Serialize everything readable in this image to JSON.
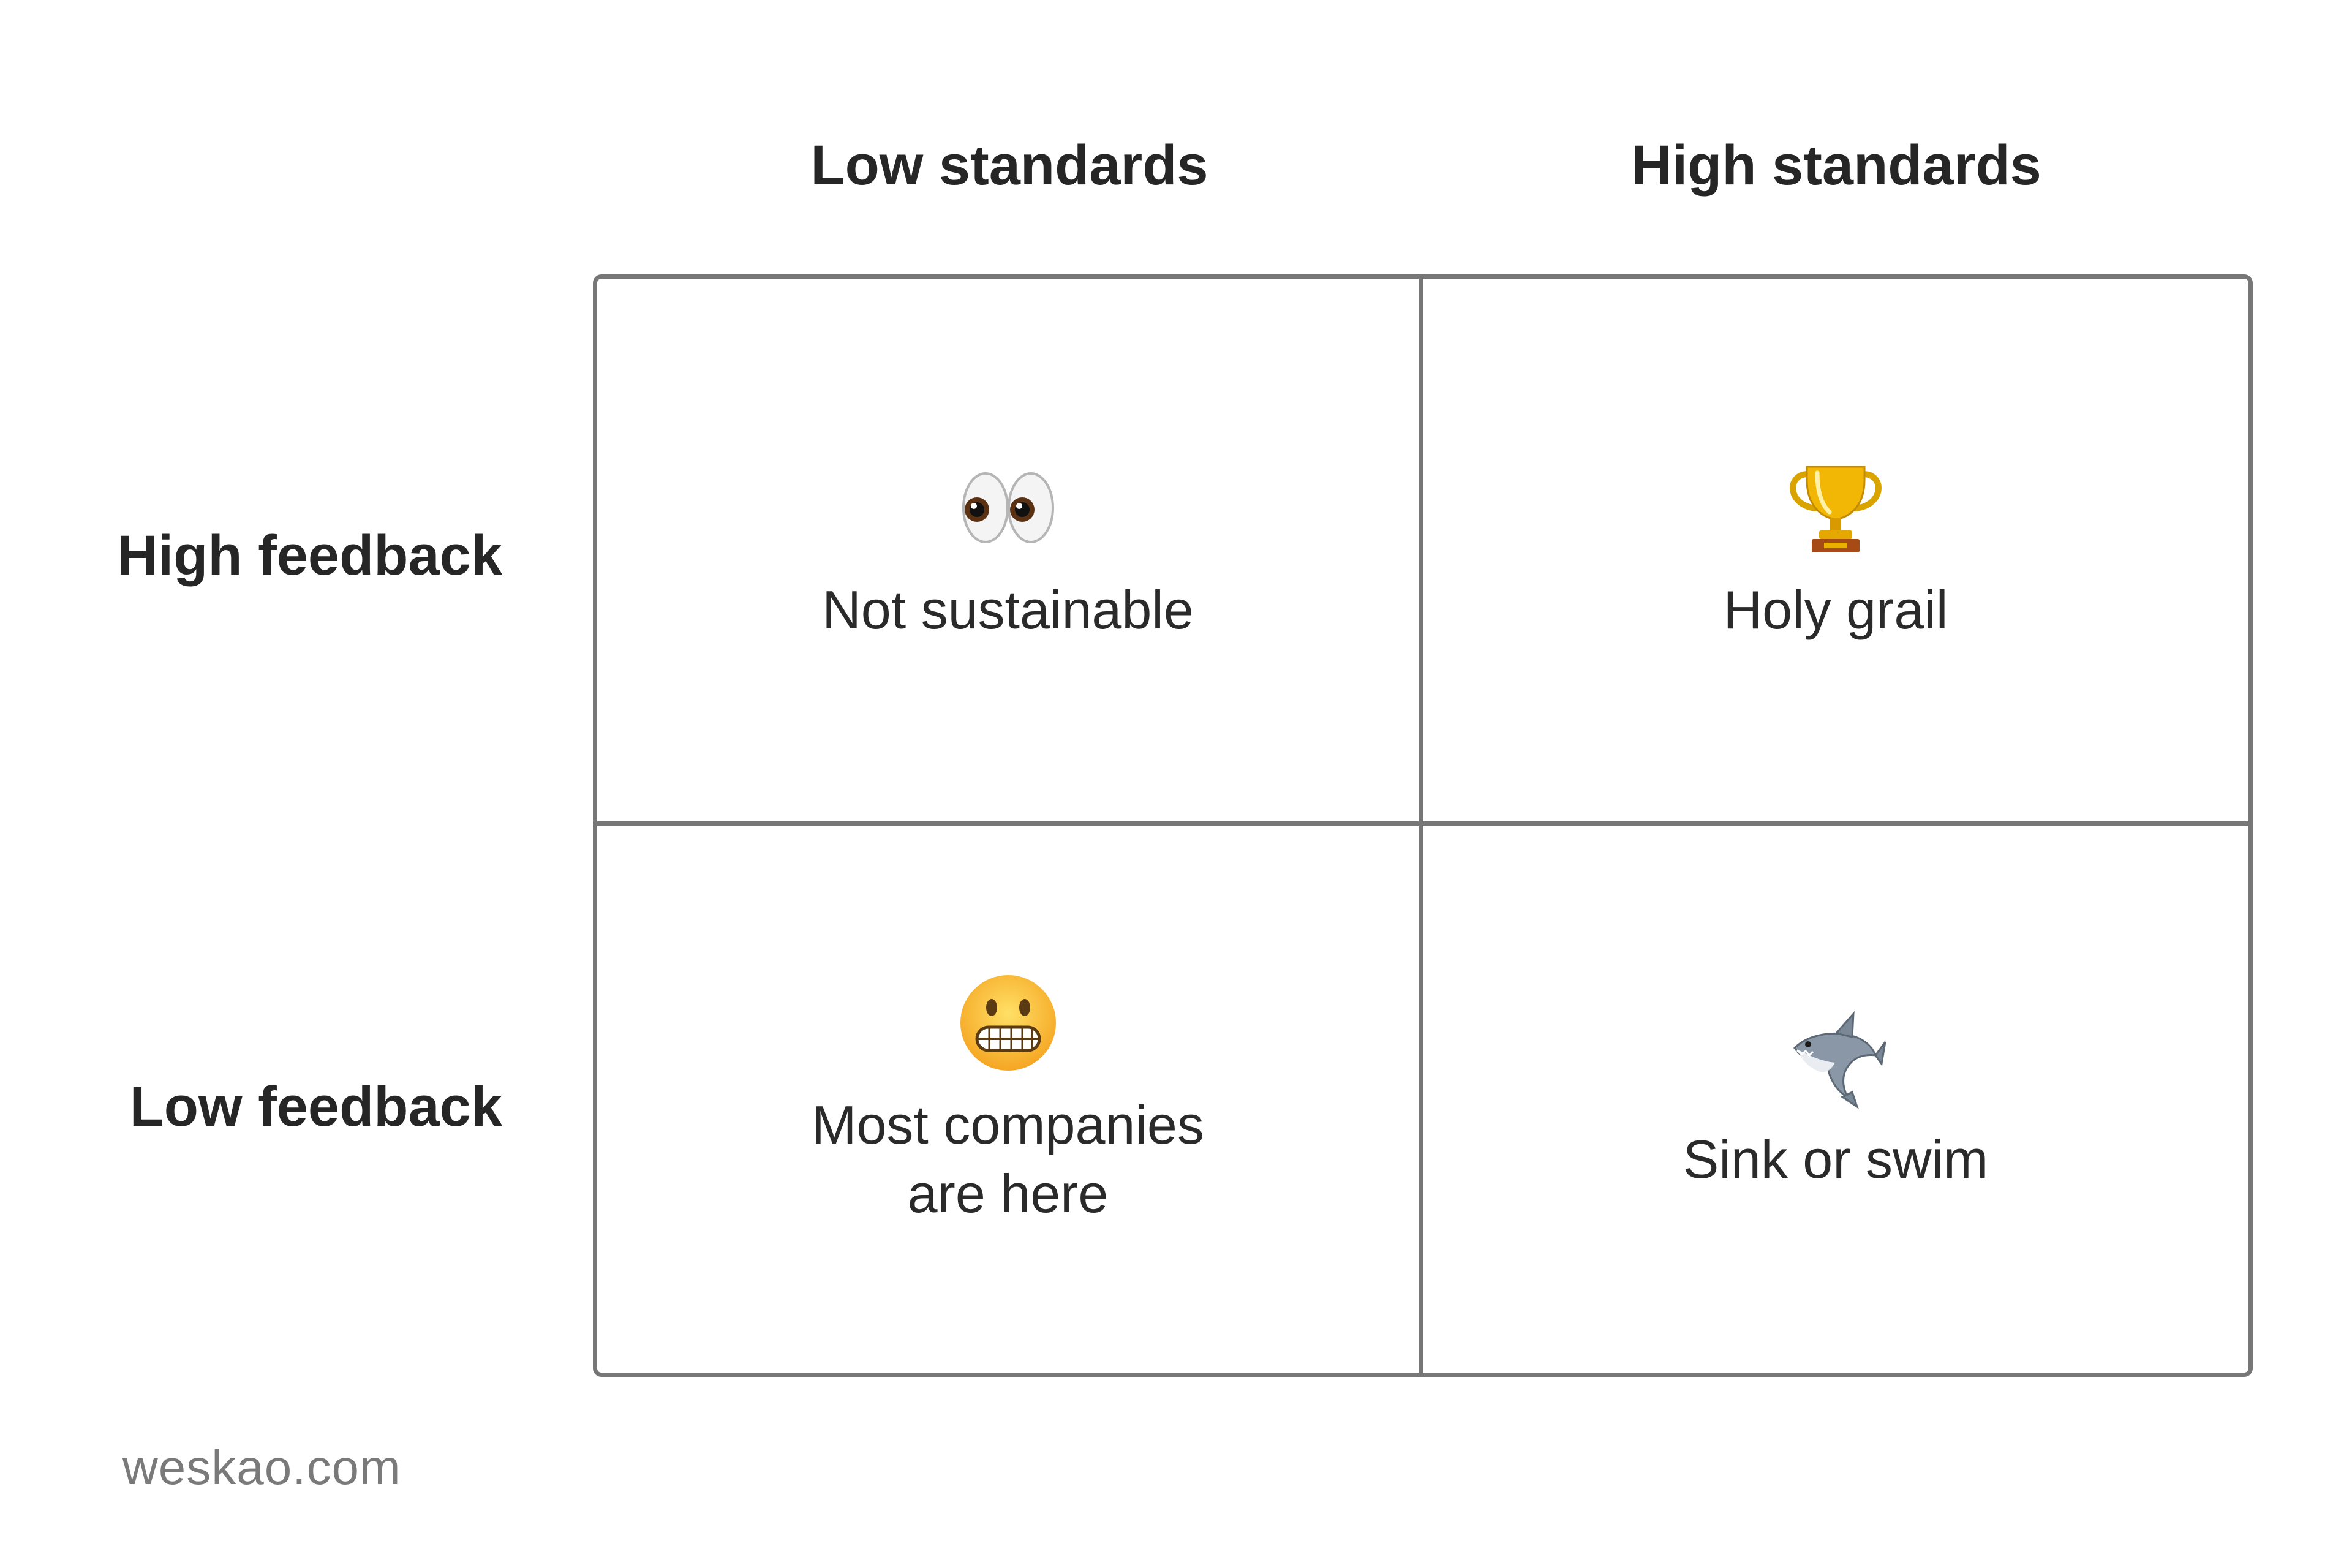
{
  "columns": {
    "low": "Low standards",
    "high": "High standards"
  },
  "rows": {
    "high": "High feedback",
    "low": "Low feedback"
  },
  "quadrants": {
    "high_low": {
      "icon": "eyes-icon",
      "label": "Not sustainable"
    },
    "high_high": {
      "icon": "trophy-icon",
      "label": "Holy grail"
    },
    "low_low": {
      "icon": "grimacing-face-icon",
      "label": "Most companies\nare here"
    },
    "low_high": {
      "icon": "shark-icon",
      "label": "Sink or swim"
    }
  },
  "colors": {
    "grid_line": "#777777",
    "text": "#2a2a2a",
    "footer_text": "#7a7a7a"
  },
  "footer": "weskao.com"
}
